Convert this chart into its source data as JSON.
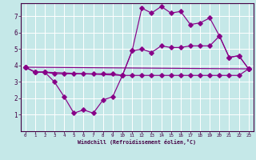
{
  "xlabel": "Windchill (Refroidissement éolien,°C)",
  "bg_color": "#c5e8e8",
  "grid_color": "#ffffff",
  "line_color": "#880088",
  "spine_color": "#440044",
  "xlim": [
    -0.5,
    23.5
  ],
  "ylim": [
    0,
    7.8
  ],
  "xticks": [
    0,
    1,
    2,
    3,
    4,
    5,
    6,
    7,
    8,
    9,
    10,
    11,
    12,
    13,
    14,
    15,
    16,
    17,
    18,
    19,
    20,
    21,
    22,
    23
  ],
  "yticks": [
    1,
    2,
    3,
    4,
    5,
    6,
    7
  ],
  "line1_x": [
    0,
    1,
    2,
    3,
    4,
    5,
    6,
    7,
    8,
    9,
    10,
    11,
    12,
    13,
    14,
    15,
    16,
    17,
    18,
    19,
    20,
    21,
    22,
    23
  ],
  "line1_y": [
    3.9,
    3.6,
    3.6,
    3.0,
    2.1,
    1.1,
    1.3,
    1.1,
    1.9,
    2.1,
    3.4,
    4.9,
    5.0,
    4.8,
    5.2,
    5.1,
    5.1,
    5.2,
    5.2,
    5.2,
    5.8,
    4.5,
    4.6,
    3.8
  ],
  "line2_x": [
    0,
    23
  ],
  "line2_y": [
    3.9,
    3.8
  ],
  "line3_x": [
    0,
    23
  ],
  "line3_y": [
    3.9,
    3.8
  ],
  "line4_x": [
    0,
    1,
    2,
    10,
    11,
    12,
    13,
    14,
    15,
    16,
    17,
    18,
    19,
    20,
    21,
    22,
    23
  ],
  "line4_y": [
    3.9,
    3.6,
    3.6,
    3.4,
    4.9,
    7.5,
    7.2,
    7.6,
    7.2,
    7.3,
    6.5,
    6.6,
    6.9,
    5.8,
    4.5,
    4.6,
    3.8
  ],
  "line5_x": [
    0,
    1,
    2,
    3,
    4,
    5,
    6,
    7,
    8,
    9,
    10,
    11,
    12,
    13,
    14,
    15,
    16,
    17,
    18,
    19,
    20,
    21,
    22,
    23
  ],
  "line5_y": [
    3.9,
    3.6,
    3.6,
    3.5,
    3.5,
    3.5,
    3.5,
    3.5,
    3.5,
    3.5,
    3.4,
    3.4,
    3.4,
    3.4,
    3.4,
    3.4,
    3.4,
    3.4,
    3.4,
    3.4,
    3.4,
    3.4,
    3.4,
    3.8
  ]
}
